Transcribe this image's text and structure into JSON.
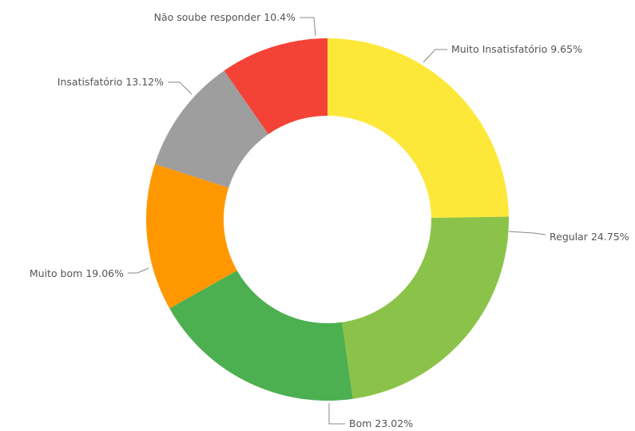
{
  "chart_data": {
    "type": "donut",
    "categories": [
      "Regular",
      "Bom",
      "Muito bom",
      "Insatisfatório",
      "Não soube responder",
      "Muito Insatisfatório"
    ],
    "values": [
      24.75,
      23.02,
      19.06,
      13.12,
      10.4,
      9.65
    ],
    "value_labels": [
      "24.75%",
      "23.02%",
      "19.06%",
      "13.12%",
      "10.4%",
      "9.65%"
    ],
    "colors": [
      "#fde83a",
      "#8bc34a",
      "#4caf50",
      "#ff9800",
      "#9e9e9e",
      "#f44336"
    ]
  }
}
